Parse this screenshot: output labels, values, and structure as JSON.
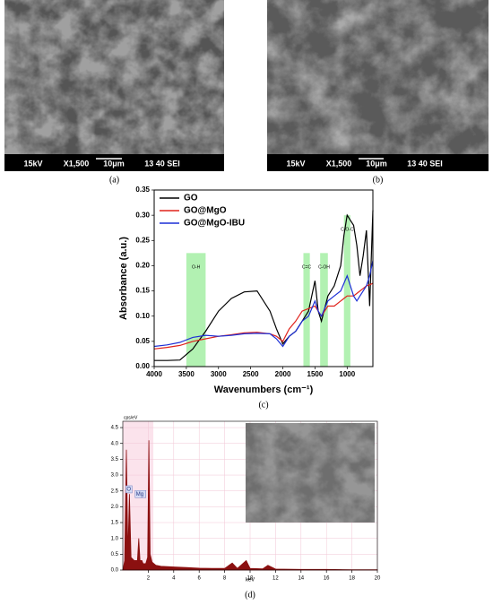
{
  "panels": [
    {
      "label": "(a)",
      "info": [
        "15kV",
        "X1,500",
        "10μm",
        "13 40 SEI"
      ]
    },
    {
      "label": "(b)",
      "info": [
        "15kV",
        "X1,500",
        "10μm",
        "13 40 SEI"
      ]
    }
  ],
  "chart_data": [
    {
      "type": "line",
      "panel_label": "(c)",
      "x_label": "Wavenumbers (cm⁻¹)",
      "y_label": "Absorbance (a.u.)",
      "xlim": [
        4000,
        600
      ],
      "xticks": [
        4000,
        3500,
        3000,
        2500,
        2000,
        1500,
        1000
      ],
      "ylim": [
        0,
        0.35
      ],
      "yticks": [
        {
          "value": 0,
          "label": "0.00"
        },
        0.05,
        {
          "value": 0.1,
          "label": "0.10"
        },
        0.15,
        {
          "value": 0.2,
          "label": "0.20"
        },
        0.25,
        {
          "value": 0.3,
          "label": "0.30"
        },
        0.35
      ],
      "legend": "top-left",
      "bands": [
        {
          "label": "O-H",
          "from": 3500,
          "to": 3200,
          "top": 0.225
        },
        {
          "label": "C=C",
          "from": 1680,
          "to": 1580,
          "top": 0.225
        },
        {
          "label": "C-OH",
          "from": 1420,
          "to": 1300,
          "top": 0.225
        },
        {
          "label": "C-O-C",
          "from": 1050,
          "to": 950,
          "top": 0.3
        }
      ],
      "band_color": "#7fe87f",
      "x": [
        4000,
        3800,
        3600,
        3400,
        3200,
        3000,
        2800,
        2600,
        2400,
        2200,
        2100,
        2000,
        1900,
        1800,
        1700,
        1600,
        1500,
        1450,
        1400,
        1300,
        1200,
        1100,
        1050,
        1000,
        950,
        900,
        850,
        800,
        750,
        700,
        650,
        600
      ],
      "series": [
        {
          "name": "GO",
          "color": "#000000",
          "values": [
            0.012,
            0.012,
            0.013,
            0.035,
            0.07,
            0.11,
            0.135,
            0.148,
            0.15,
            0.11,
            0.075,
            0.045,
            0.06,
            0.07,
            0.09,
            0.11,
            0.17,
            0.11,
            0.09,
            0.14,
            0.16,
            0.2,
            0.26,
            0.3,
            0.29,
            0.28,
            0.24,
            0.18,
            0.22,
            0.27,
            0.12,
            0.31
          ]
        },
        {
          "name": "GO@MgO",
          "color": "#e0231c",
          "values": [
            0.035,
            0.038,
            0.042,
            0.05,
            0.055,
            0.06,
            0.063,
            0.067,
            0.068,
            0.065,
            0.06,
            0.05,
            0.075,
            0.09,
            0.11,
            0.115,
            0.12,
            0.11,
            0.1,
            0.12,
            0.12,
            0.13,
            0.135,
            0.14,
            0.14,
            0.14,
            0.145,
            0.15,
            0.155,
            0.16,
            0.162,
            0.165
          ]
        },
        {
          "name": "GO@MgO-IBU",
          "color": "#1c2fd6",
          "values": [
            0.04,
            0.043,
            0.048,
            0.058,
            0.062,
            0.06,
            0.062,
            0.065,
            0.066,
            0.065,
            0.055,
            0.04,
            0.06,
            0.07,
            0.09,
            0.1,
            0.13,
            0.11,
            0.1,
            0.13,
            0.14,
            0.15,
            0.165,
            0.18,
            0.16,
            0.14,
            0.13,
            0.14,
            0.15,
            0.16,
            0.18,
            0.21
          ]
        }
      ]
    },
    {
      "type": "area",
      "panel_label": "(d)",
      "x_label": "keV",
      "y_label": "cps/eV",
      "xlim": [
        0,
        20
      ],
      "xticks": [
        2,
        4,
        6,
        8,
        10,
        12,
        14,
        16,
        18,
        20
      ],
      "ylim": [
        0,
        4.7
      ],
      "yticks": [
        {
          "value": 0,
          "label": "0.0"
        },
        0.5,
        {
          "value": 1,
          "label": "1.0"
        },
        1.5,
        {
          "value": 2,
          "label": "2.0"
        },
        2.5,
        {
          "value": 3,
          "label": "3.0"
        },
        3.5,
        {
          "value": 4,
          "label": "4.0"
        },
        4.5
      ],
      "grid": true,
      "color": "#8b1010",
      "x": [
        0,
        0.15,
        0.28,
        0.4,
        0.52,
        0.65,
        0.9,
        1.15,
        1.25,
        1.35,
        1.5,
        1.6,
        1.8,
        1.95,
        2.05,
        2.15,
        2.3,
        2.6,
        3,
        4,
        5,
        6,
        7,
        8,
        8.6,
        9,
        9.7,
        10,
        11,
        11.4,
        12,
        14,
        16,
        18,
        20
      ],
      "values": [
        0,
        0.3,
        3.8,
        0.5,
        2.4,
        0.4,
        0.3,
        0.3,
        1.0,
        0.3,
        0.3,
        0.2,
        0.2,
        0.4,
        4.1,
        0.5,
        0.25,
        0.15,
        0.12,
        0.1,
        0.08,
        0.06,
        0.05,
        0.05,
        0.22,
        0.05,
        0.3,
        0.05,
        0.04,
        0.15,
        0.03,
        0.02,
        0.02,
        0.01,
        0.01
      ],
      "annotations": [
        {
          "text": "O",
          "x": 0.52,
          "y": 2.55
        },
        {
          "text": "Mg",
          "x": 1.25,
          "y": 2.4
        }
      ]
    }
  ]
}
